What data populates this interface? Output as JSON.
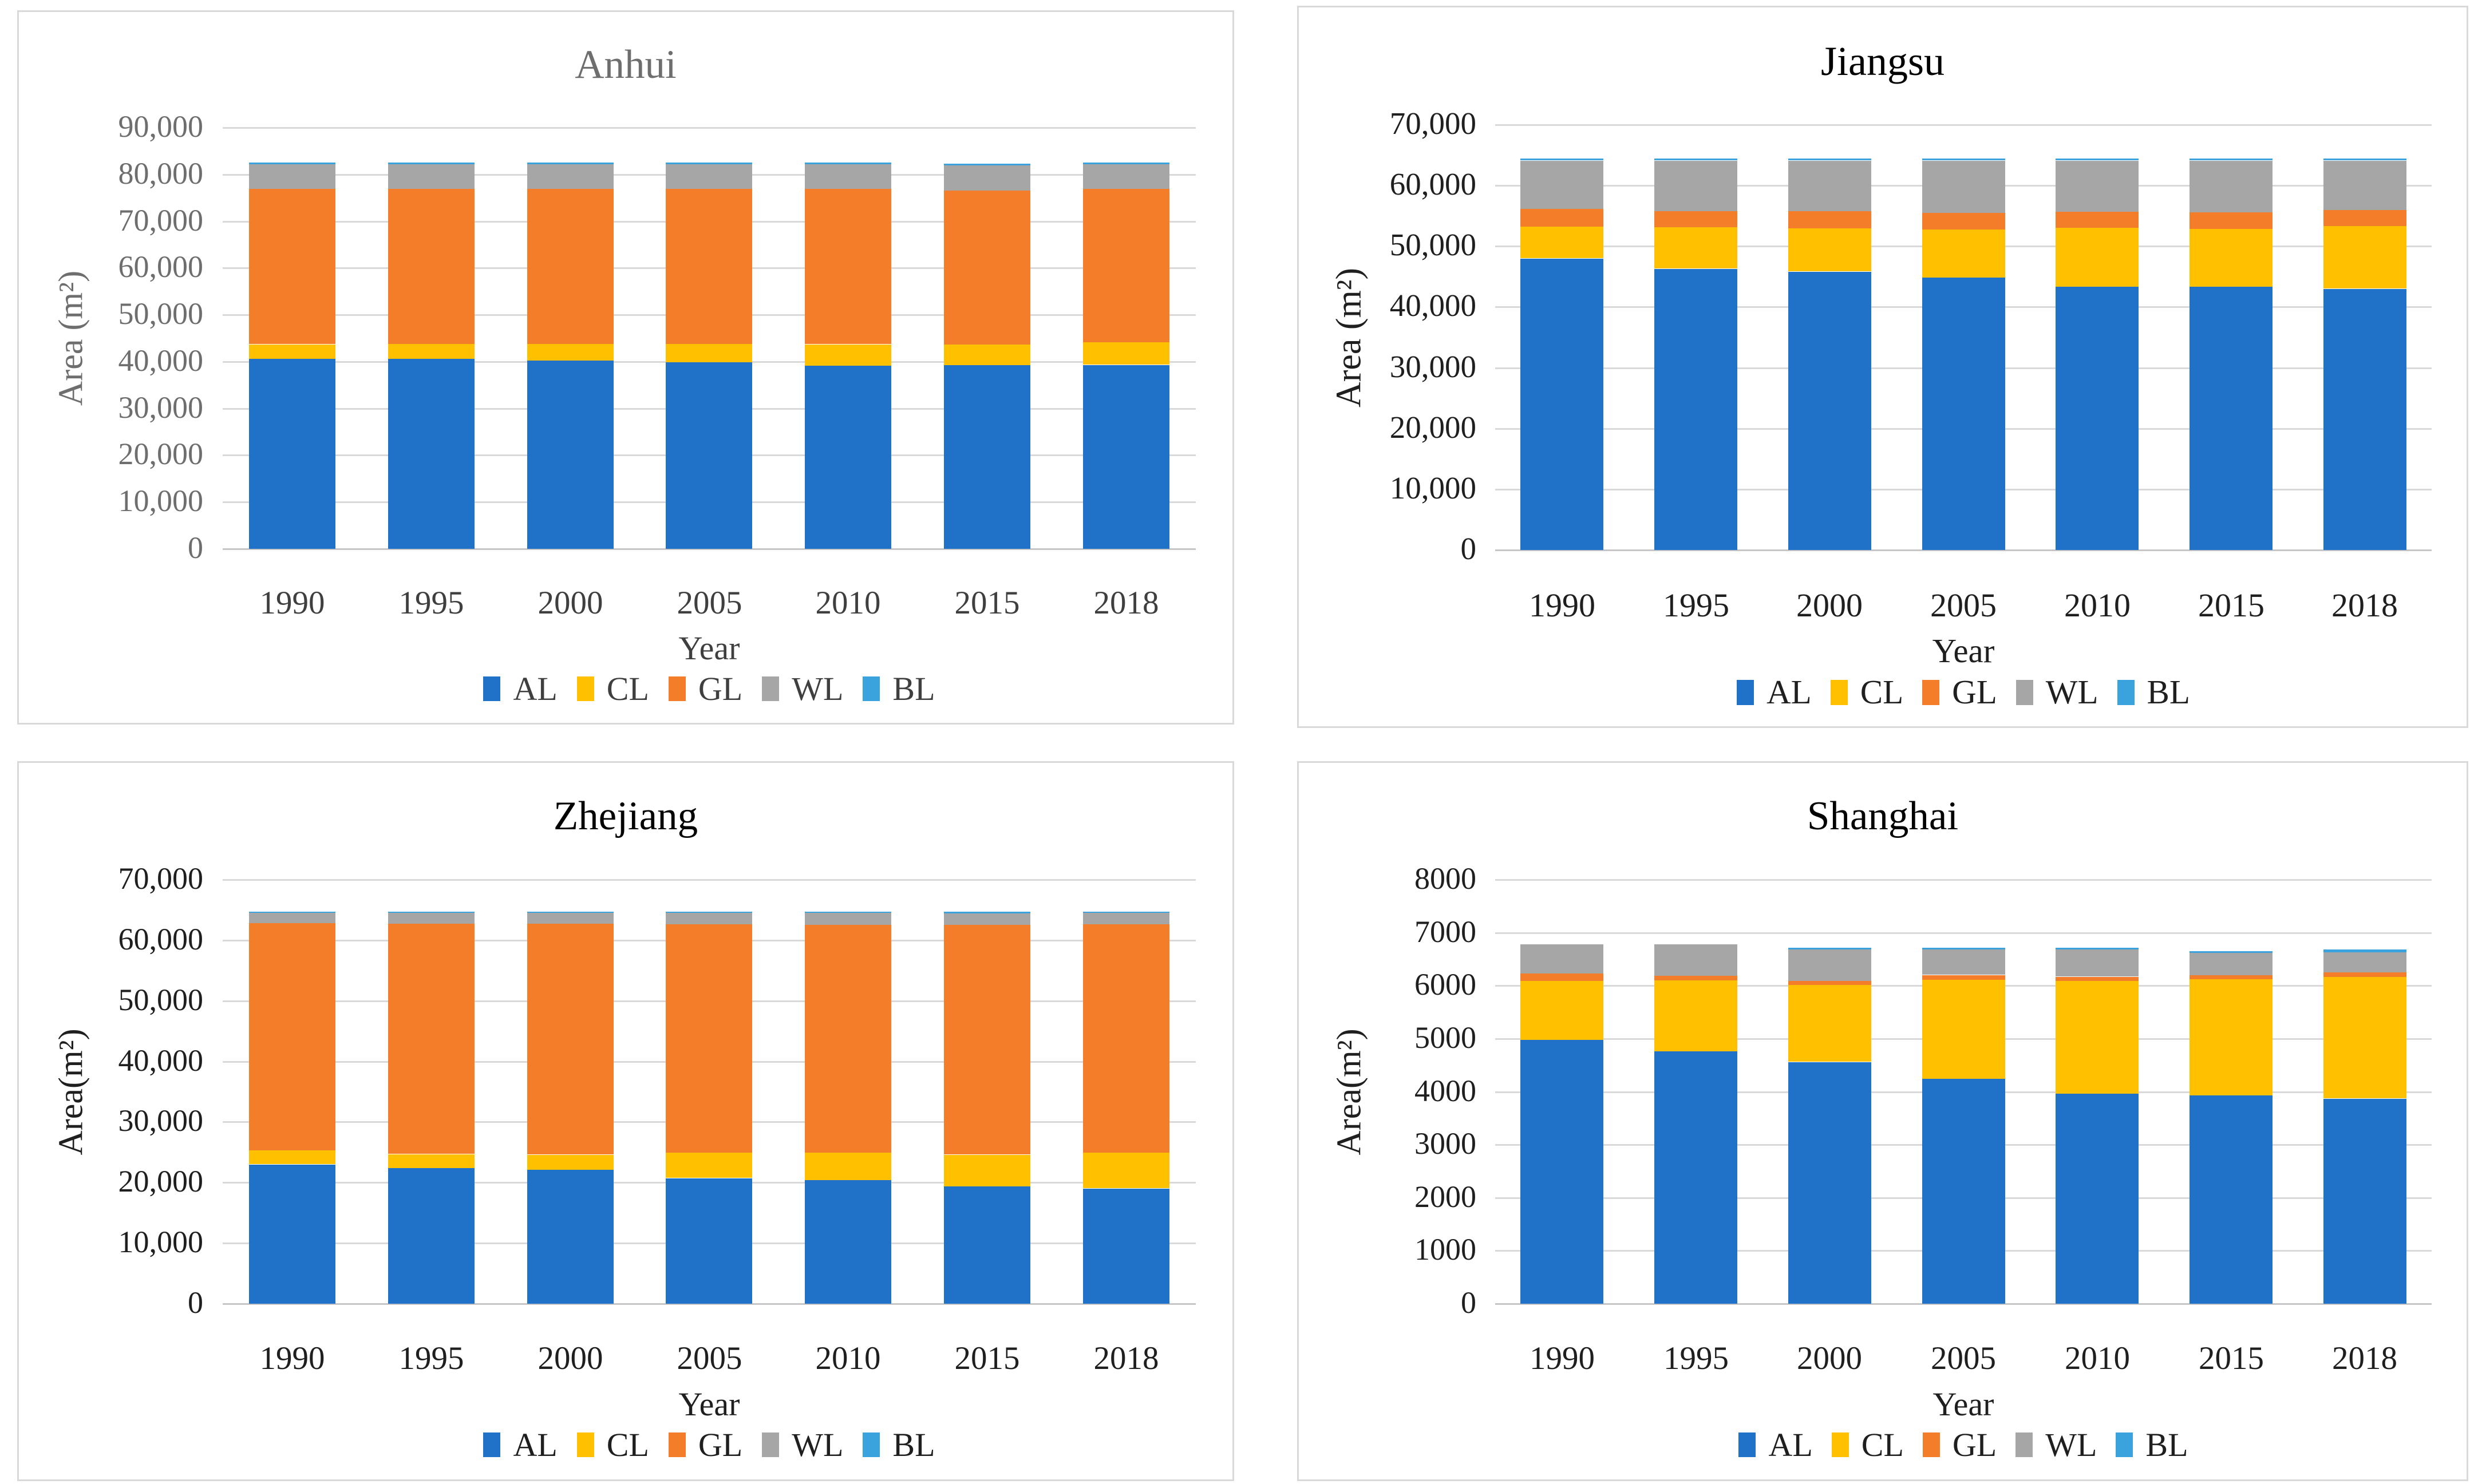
{
  "figure": {
    "description_title": "Stacked bar charts of land-use area by year for four regions"
  },
  "colors": {
    "AL": "#1F72C8",
    "CL": "#FFC000",
    "GL": "#F47D2A",
    "WL": "#A6A6A6",
    "BL": "#3AA2DC",
    "gridline": "#D9D9D9",
    "baseline": "#C6C6C6",
    "panel_border": "#D9D9D9",
    "anhui_text": "#6E6E6E",
    "default_text": "#1F1F1F"
  },
  "chart_data": [
    {
      "type": "bar",
      "stacked": true,
      "title": "Anhui",
      "title_color": "#6E6E6E",
      "axis_text_color": "#6E6E6E",
      "label_text_color": "#3F3F3F",
      "xlabel": "Year",
      "ylabel": "Area (m²)",
      "grid": true,
      "legend_position": "bottom",
      "categories": [
        "1990",
        "1995",
        "2000",
        "2005",
        "2010",
        "2015",
        "2018"
      ],
      "ylim": [
        0,
        90000
      ],
      "ytick_step": 10000,
      "ytick_labels": [
        "0",
        "10,000",
        "20,000",
        "30,000",
        "40,000",
        "50,000",
        "60,000",
        "70,000",
        "80,000",
        "90,000"
      ],
      "series": [
        {
          "name": "AL",
          "values": [
            40600,
            40600,
            40200,
            39900,
            39200,
            39200,
            39300
          ]
        },
        {
          "name": "CL",
          "values": [
            3100,
            3200,
            3600,
            3900,
            4500,
            4400,
            4800
          ]
        },
        {
          "name": "GL",
          "values": [
            33300,
            33200,
            33200,
            33200,
            33300,
            32900,
            32900
          ]
        },
        {
          "name": "WL",
          "values": [
            5200,
            5200,
            5200,
            5200,
            5200,
            5400,
            5200
          ]
        },
        {
          "name": "BL",
          "values": [
            400,
            400,
            400,
            400,
            400,
            400,
            400
          ]
        }
      ]
    },
    {
      "type": "bar",
      "stacked": true,
      "title": "Jiangsu",
      "title_color": "#000000",
      "axis_text_color": "#1F1F1F",
      "label_text_color": "#1F1F1F",
      "xlabel": "Year",
      "ylabel": "Area (m²)",
      "grid": true,
      "legend_position": "bottom",
      "categories": [
        "1990",
        "1995",
        "2000",
        "2005",
        "2010",
        "2015",
        "2018"
      ],
      "ylim": [
        0,
        70000
      ],
      "ytick_step": 10000,
      "ytick_labels": [
        "0",
        "10,000",
        "20,000",
        "30,000",
        "40,000",
        "50,000",
        "60,000",
        "70,000"
      ],
      "series": [
        {
          "name": "AL",
          "values": [
            48000,
            46300,
            45800,
            44900,
            43300,
            43400,
            43000
          ]
        },
        {
          "name": "CL",
          "values": [
            5200,
            6900,
            7200,
            7900,
            9800,
            9500,
            10400
          ]
        },
        {
          "name": "GL",
          "values": [
            3000,
            2600,
            2800,
            2700,
            2600,
            2700,
            2600
          ]
        },
        {
          "name": "WL",
          "values": [
            7900,
            8300,
            8300,
            8600,
            8400,
            8500,
            8100
          ]
        },
        {
          "name": "BL",
          "values": [
            300,
            300,
            300,
            300,
            300,
            300,
            300
          ]
        }
      ]
    },
    {
      "type": "bar",
      "stacked": true,
      "title": "Zhejiang",
      "title_color": "#000000",
      "axis_text_color": "#1F1F1F",
      "label_text_color": "#1F1F1F",
      "xlabel": "Year",
      "ylabel": "Area(m²)",
      "grid": true,
      "legend_position": "bottom",
      "categories": [
        "1990",
        "1995",
        "2000",
        "2005",
        "2010",
        "2015",
        "2018"
      ],
      "ylim": [
        0,
        70000
      ],
      "ytick_step": 10000,
      "ytick_labels": [
        "0",
        "10,000",
        "20,000",
        "30,000",
        "40,000",
        "50,000",
        "60,000",
        "70,000"
      ],
      "series": [
        {
          "name": "AL",
          "values": [
            23000,
            22400,
            22100,
            20700,
            20400,
            19400,
            19000
          ]
        },
        {
          "name": "CL",
          "values": [
            2300,
            2300,
            2500,
            4200,
            4500,
            5200,
            5900
          ]
        },
        {
          "name": "GL",
          "values": [
            37500,
            38000,
            38100,
            37700,
            37600,
            37900,
            37700
          ]
        },
        {
          "name": "WL",
          "values": [
            1700,
            1800,
            1800,
            1900,
            2000,
            1900,
            1900
          ]
        },
        {
          "name": "BL",
          "values": [
            200,
            200,
            200,
            200,
            200,
            300,
            200
          ]
        }
      ]
    },
    {
      "type": "bar",
      "stacked": true,
      "title": "Shanghai",
      "title_color": "#000000",
      "axis_text_color": "#1F1F1F",
      "label_text_color": "#1F1F1F",
      "xlabel": "Year",
      "ylabel": "Area(m²)",
      "grid": true,
      "legend_position": "bottom",
      "categories": [
        "1990",
        "1995",
        "2000",
        "2005",
        "2010",
        "2015",
        "2018"
      ],
      "ylim": [
        0,
        8000
      ],
      "ytick_step": 1000,
      "ytick_labels": [
        "0",
        "1000",
        "2000",
        "3000",
        "4000",
        "5000",
        "6000",
        "7000",
        "8000"
      ],
      "series": [
        {
          "name": "AL",
          "values": [
            4980,
            4760,
            4560,
            4240,
            3960,
            3930,
            3870
          ]
        },
        {
          "name": "CL",
          "values": [
            1110,
            1340,
            1450,
            1870,
            2130,
            2190,
            2290
          ]
        },
        {
          "name": "GL",
          "values": [
            140,
            90,
            80,
            90,
            80,
            80,
            90
          ]
        },
        {
          "name": "WL",
          "values": [
            550,
            590,
            590,
            480,
            510,
            420,
            380
          ]
        },
        {
          "name": "BL",
          "values": [
            0,
            0,
            30,
            30,
            30,
            30,
            50
          ]
        }
      ]
    }
  ],
  "legend": {
    "items": [
      "AL",
      "CL",
      "GL",
      "WL",
      "BL"
    ]
  }
}
